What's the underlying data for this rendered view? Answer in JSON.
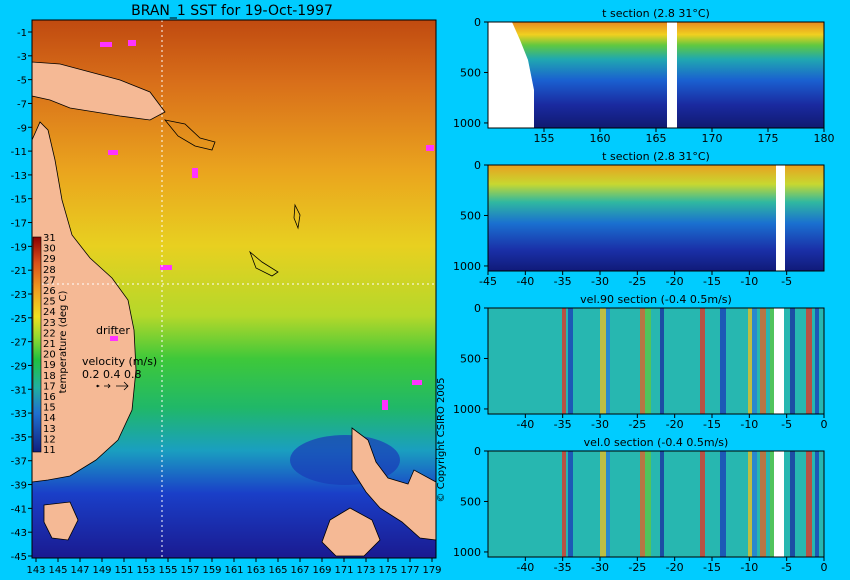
{
  "map": {
    "title": "BRAN_1 SST for 19-Oct-1997",
    "x_ticks": [
      "143",
      "145",
      "147",
      "149",
      "151",
      "153",
      "155",
      "157",
      "159",
      "161",
      "163",
      "165",
      "167",
      "169",
      "171",
      "173",
      "175",
      "177",
      "179"
    ],
    "y_ticks": [
      "-1",
      "-3",
      "-5",
      "-7",
      "-9",
      "-11",
      "-13",
      "-15",
      "-17",
      "-19",
      "-21",
      "-23",
      "-25",
      "-27",
      "-29",
      "-31",
      "-33",
      "-35",
      "-37",
      "-39",
      "-41",
      "-43",
      "-45"
    ],
    "colorbar": {
      "label": "temperature (deg C)",
      "ticks": [
        "31",
        "30",
        "29",
        "28",
        "27",
        "26",
        "25",
        "24",
        "23",
        "22",
        "21",
        "20",
        "19",
        "18",
        "17",
        "16",
        "15",
        "14",
        "13",
        "12",
        "11"
      ]
    },
    "drifter_label": "drifter",
    "velocity_label": "velocity (m/s)",
    "velocity_values": "0.2 0.4 0.8",
    "copyright": "© Copyright CSIRO 2005"
  },
  "chart_data": [
    {
      "type": "heatmap",
      "title": "t section (2.8      31°C)",
      "x_ticks": [
        "155",
        "160",
        "165",
        "170",
        "175",
        "180"
      ],
      "y_ticks": [
        "0",
        "500",
        "1000"
      ],
      "xlim": [
        150,
        180
      ],
      "ylim": [
        0,
        1050
      ]
    },
    {
      "type": "heatmap",
      "title": "t section (2.8      31°C)",
      "x_ticks": [
        "-45",
        "-40",
        "-35",
        "-30",
        "-25",
        "-20",
        "-15",
        "-10",
        "-5"
      ],
      "y_ticks": [
        "0",
        "500",
        "1000"
      ],
      "xlim": [
        -45,
        0
      ],
      "ylim": [
        0,
        1050
      ]
    },
    {
      "type": "heatmap",
      "title": "vel.90 section (-0.4      0.5m/s)",
      "x_ticks": [
        "-40",
        "-35",
        "-30",
        "-25",
        "-20",
        "-15",
        "-10",
        "-5",
        "0"
      ],
      "y_ticks": [
        "0",
        "500",
        "1000"
      ],
      "xlim": [
        -45,
        0
      ],
      "ylim": [
        0,
        1050
      ]
    },
    {
      "type": "heatmap",
      "title": "vel.0 section (-0.4      0.5m/s)",
      "x_ticks": [
        "-40",
        "-35",
        "-30",
        "-25",
        "-20",
        "-15",
        "-10",
        "-5",
        "0"
      ],
      "y_ticks": [
        "0",
        "500",
        "1000"
      ],
      "xlim": [
        -45,
        0
      ],
      "ylim": [
        0,
        1050
      ]
    }
  ]
}
